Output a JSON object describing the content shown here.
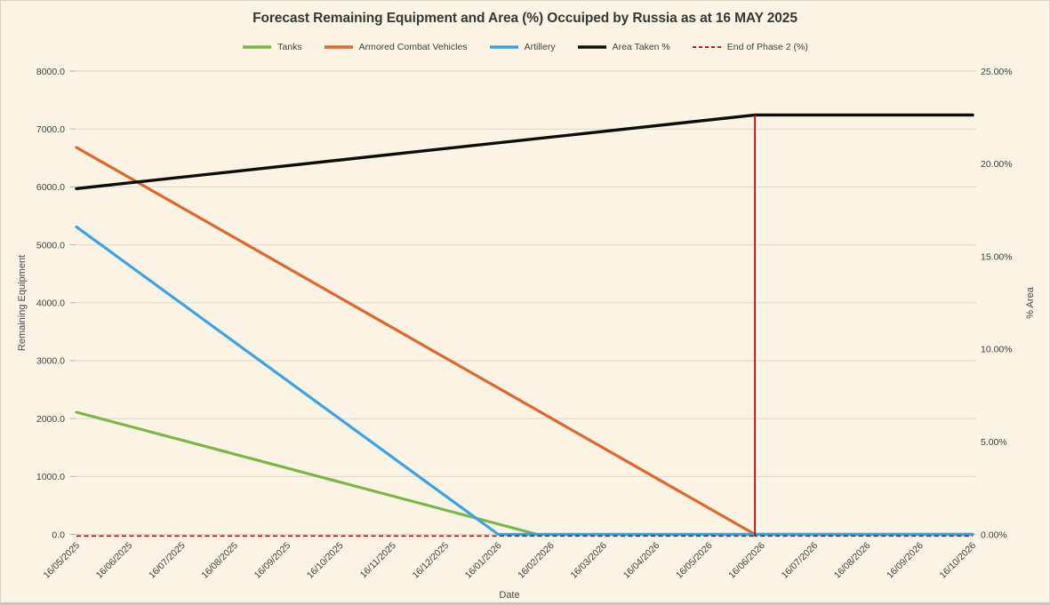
{
  "window": {
    "background": "#fbf4e4",
    "frame_color": "#d8d5ca"
  },
  "chart_data": {
    "type": "line",
    "title": "Forecast Remaining Equipment and Area (%) Occuiped by Russia as at 16 MAY 2025",
    "xlabel": "Date",
    "grid": "horizontal",
    "legend_position": "top",
    "x_categories": [
      "16/05/2025",
      "16/06/2025",
      "16/07/2025",
      "16/08/2025",
      "16/09/2025",
      "16/10/2025",
      "16/11/2025",
      "16/12/2025",
      "16/01/2026",
      "16/02/2026",
      "16/03/2026",
      "16/04/2026",
      "16/05/2026",
      "16/06/2026",
      "16/07/2026",
      "16/08/2026",
      "16/09/2026",
      "16/10/2026"
    ],
    "left_axis": {
      "label": "Remaining Equipment",
      "min": 0,
      "max": 8000,
      "tick_labels": [
        "0.0",
        "1000.0",
        "2000.0",
        "3000.0",
        "4000.0",
        "5000.0",
        "6000.0",
        "7000.0",
        "8000.0"
      ]
    },
    "right_axis": {
      "label": "% Area",
      "min": 0,
      "max": 25,
      "tick_labels": [
        "0.00%",
        "5.00%",
        "10.00%",
        "15.00%",
        "20.00%",
        "25.00%"
      ]
    },
    "series": [
      {
        "name": "Tanks",
        "axis": "left",
        "color": "#7ab648",
        "line_style": "solid",
        "values": [
          2110,
          1869,
          1627,
          1386,
          1144,
          903,
          661,
          420,
          178,
          0,
          0,
          0,
          0,
          0,
          0,
          0,
          0,
          0
        ],
        "anchors_months": [
          [
            0,
            2110
          ],
          [
            8.74,
            0
          ],
          [
            17,
            0
          ]
        ]
      },
      {
        "name": "Armored Combat Vehicles",
        "axis": "left",
        "color": "#e0662b",
        "line_style": "solid",
        "values": [
          6680,
          6161,
          5643,
          5124,
          4606,
          4087,
          3569,
          3050,
          2531,
          2013,
          1494,
          976,
          457,
          0,
          0,
          0,
          0,
          0
        ],
        "anchors_months": [
          [
            0,
            6680
          ],
          [
            12.87,
            0
          ],
          [
            17,
            0
          ]
        ]
      },
      {
        "name": "Artillery",
        "axis": "left",
        "color": "#3aa3e8",
        "line_style": "solid",
        "values": [
          5310,
          4646,
          3983,
          3319,
          2655,
          1991,
          1328,
          664,
          0,
          0,
          0,
          0,
          0,
          0,
          0,
          0,
          0,
          0
        ],
        "anchors_months": [
          [
            0,
            5310
          ],
          [
            8,
            0
          ],
          [
            17,
            0
          ]
        ]
      },
      {
        "name": "Area Taken %",
        "axis": "right",
        "color": "#0d0d0d",
        "line_style": "solid",
        "values": [
          18.7,
          19.0,
          19.3,
          19.6,
          19.9,
          20.2,
          20.5,
          20.8,
          21.1,
          21.4,
          21.7,
          22.0,
          22.3,
          22.6,
          22.6,
          22.6,
          22.6,
          22.6
        ],
        "anchors_months": [
          [
            0,
            18.66
          ],
          [
            12.87,
            22.63
          ],
          [
            17,
            22.63
          ]
        ]
      },
      {
        "name": "End of Phase 2 (%)",
        "axis": "right",
        "color": "#c00000",
        "line_style": "dashed",
        "values": [
          0,
          0,
          0,
          0,
          0,
          0,
          0,
          0,
          0,
          0,
          0,
          0,
          0,
          0,
          0,
          0,
          0,
          0
        ],
        "spike": {
          "month": 12.87,
          "value": 22.63
        },
        "anchors_months": [
          [
            0,
            0
          ],
          [
            12.87,
            0
          ],
          [
            12.87,
            22.63
          ],
          [
            12.87,
            0
          ],
          [
            17,
            0
          ]
        ]
      }
    ]
  }
}
